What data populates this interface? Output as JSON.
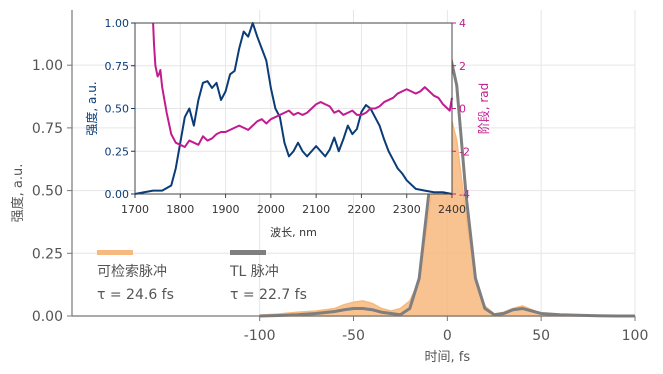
{
  "colors": {
    "retrieved": "#f7b97e",
    "tl": "#7f7f7f",
    "spectrum": "#0c3c78",
    "phase": "#c21b8f",
    "axis": "#555555",
    "grid": "#e6e6e6"
  },
  "chart_data": [
    {
      "id": "main",
      "type": "area",
      "xlabel": "时间, fs",
      "ylabel": "强度, a.u.",
      "xlim": [
        -200,
        100
      ],
      "ylim": [
        0,
        1.22
      ],
      "xticks": [
        -100,
        -50,
        0,
        50,
        100
      ],
      "xtick_labels": [
        "-100",
        "-50",
        "0",
        "50",
        "100"
      ],
      "yticks": [
        0,
        0.25,
        0.5,
        0.75,
        1.0
      ],
      "ytick_labels": [
        "0.00",
        "0.25",
        "0.50",
        "0.75",
        "1.00"
      ],
      "grid": true,
      "legend": {
        "placement": "lower-left",
        "entries": [
          {
            "label": "可检索脉冲",
            "value": "τ = 24.6 fs"
          },
          {
            "label": "TL 脉冲",
            "value": "τ = 22.7 fs"
          }
        ]
      },
      "series": [
        {
          "name": "可检索脉冲",
          "style": "filled",
          "x": [
            -100,
            -90,
            -80,
            -70,
            -60,
            -55,
            -50,
            -45,
            -40,
            -35,
            -30,
            -25,
            -20,
            -15,
            -10,
            -5,
            0,
            5,
            10,
            15,
            20,
            25,
            30,
            35,
            40,
            45,
            50,
            60,
            70,
            80,
            90,
            100
          ],
          "y": [
            0.003,
            0.008,
            0.015,
            0.02,
            0.03,
            0.045,
            0.055,
            0.06,
            0.05,
            0.03,
            0.02,
            0.03,
            0.06,
            0.14,
            0.4,
            0.7,
            0.85,
            0.7,
            0.4,
            0.14,
            0.04,
            0.008,
            0.015,
            0.03,
            0.04,
            0.025,
            0.01,
            0.005,
            0.002,
            0.001,
            0.0,
            0.0
          ]
        },
        {
          "name": "TL 脉冲",
          "style": "line",
          "x": [
            -100,
            -90,
            -80,
            -70,
            -60,
            -55,
            -50,
            -45,
            -40,
            -35,
            -30,
            -25,
            -20,
            -15,
            -10,
            -5,
            0,
            5,
            10,
            15,
            20,
            25,
            30,
            35,
            40,
            45,
            50,
            60,
            70,
            80,
            90,
            100
          ],
          "y": [
            0.0,
            0.002,
            0.005,
            0.01,
            0.018,
            0.025,
            0.03,
            0.03,
            0.025,
            0.015,
            0.01,
            0.005,
            0.03,
            0.15,
            0.48,
            0.92,
            1.09,
            0.92,
            0.48,
            0.15,
            0.03,
            0.005,
            0.01,
            0.025,
            0.03,
            0.02,
            0.01,
            0.005,
            0.003,
            0.001,
            0.0,
            0.0
          ]
        }
      ]
    },
    {
      "id": "inset",
      "type": "line",
      "xlabel": "波长, nm",
      "ylabel": "强度, a.u.",
      "y2label": "阶段, rad",
      "xlim": [
        1700,
        2400
      ],
      "ylim": [
        0,
        1.0
      ],
      "y2lim": [
        -4,
        4
      ],
      "xticks": [
        1700,
        1800,
        1900,
        2000,
        2100,
        2200,
        2300,
        2400
      ],
      "xtick_labels": [
        "1700",
        "1800",
        "1900",
        "2000",
        "2100",
        "2200",
        "2300",
        "2400"
      ],
      "yticks": [
        0,
        0.25,
        0.5,
        0.75,
        1.0
      ],
      "ytick_labels": [
        "0.00",
        "0.25",
        "0.50",
        "0.75",
        "1.00"
      ],
      "y2ticks": [
        -4,
        -2,
        0,
        2,
        4
      ],
      "y2tick_labels": [
        "-4",
        "-2",
        "0",
        "2",
        "4"
      ],
      "grid": true,
      "series": [
        {
          "role": "spectrum",
          "axis": "left",
          "x": [
            1700,
            1720,
            1740,
            1760,
            1780,
            1790,
            1800,
            1810,
            1820,
            1830,
            1840,
            1850,
            1860,
            1870,
            1880,
            1890,
            1900,
            1910,
            1920,
            1930,
            1940,
            1950,
            1960,
            1970,
            1980,
            1990,
            2000,
            2010,
            2020,
            2030,
            2040,
            2050,
            2060,
            2070,
            2080,
            2090,
            2100,
            2110,
            2120,
            2130,
            2140,
            2150,
            2160,
            2170,
            2180,
            2190,
            2200,
            2210,
            2220,
            2230,
            2240,
            2250,
            2260,
            2270,
            2280,
            2290,
            2300,
            2320,
            2340,
            2360,
            2380,
            2400
          ],
          "y": [
            0.0,
            0.01,
            0.02,
            0.02,
            0.05,
            0.15,
            0.3,
            0.45,
            0.5,
            0.4,
            0.55,
            0.65,
            0.66,
            0.62,
            0.65,
            0.55,
            0.6,
            0.7,
            0.72,
            0.85,
            0.95,
            0.92,
            1.0,
            0.92,
            0.85,
            0.78,
            0.62,
            0.5,
            0.45,
            0.3,
            0.22,
            0.25,
            0.3,
            0.25,
            0.22,
            0.25,
            0.28,
            0.25,
            0.22,
            0.26,
            0.33,
            0.25,
            0.32,
            0.4,
            0.35,
            0.38,
            0.48,
            0.52,
            0.5,
            0.45,
            0.4,
            0.32,
            0.25,
            0.2,
            0.15,
            0.12,
            0.08,
            0.03,
            0.02,
            0.01,
            0.01,
            0.0
          ]
        },
        {
          "role": "phase",
          "axis": "right",
          "x": [
            1740,
            1742,
            1745,
            1750,
            1753,
            1756,
            1760,
            1770,
            1780,
            1790,
            1800,
            1810,
            1820,
            1830,
            1840,
            1850,
            1860,
            1870,
            1880,
            1890,
            1900,
            1910,
            1920,
            1930,
            1940,
            1950,
            1960,
            1970,
            1980,
            1990,
            2000,
            2010,
            2020,
            2030,
            2040,
            2050,
            2060,
            2070,
            2080,
            2090,
            2100,
            2110,
            2120,
            2130,
            2140,
            2150,
            2160,
            2170,
            2180,
            2190,
            2200,
            2210,
            2220,
            2230,
            2240,
            2250,
            2260,
            2270,
            2280,
            2290,
            2300,
            2310,
            2320,
            2330,
            2340,
            2350,
            2360,
            2370,
            2380,
            2390,
            2395,
            2400
          ],
          "y": [
            4.0,
            3.0,
            2.0,
            1.5,
            1.6,
            1.8,
            1.0,
            -0.2,
            -1.2,
            -1.6,
            -1.7,
            -1.8,
            -1.5,
            -1.6,
            -1.7,
            -1.3,
            -1.5,
            -1.4,
            -1.2,
            -1.1,
            -1.1,
            -1.0,
            -0.9,
            -0.8,
            -0.9,
            -1.0,
            -0.8,
            -0.6,
            -0.5,
            -0.7,
            -0.5,
            -0.4,
            -0.3,
            -0.2,
            -0.1,
            -0.3,
            -0.2,
            -0.3,
            -0.2,
            0.0,
            0.2,
            0.3,
            0.2,
            0.1,
            -0.2,
            -0.1,
            -0.3,
            -0.2,
            -0.1,
            -0.3,
            -0.3,
            -0.2,
            0.0,
            0.0,
            0.1,
            0.3,
            0.4,
            0.5,
            0.7,
            0.8,
            0.9,
            0.8,
            0.7,
            0.8,
            1.0,
            0.8,
            0.6,
            0.5,
            0.2,
            0.0,
            -0.1,
            0.5
          ]
        }
      ]
    }
  ]
}
